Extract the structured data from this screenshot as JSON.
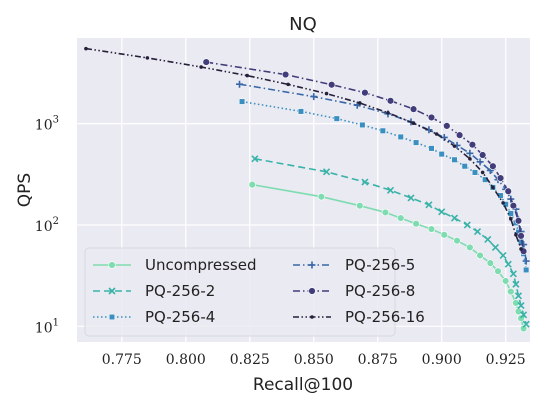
{
  "chart_data": {
    "type": "line",
    "title": "NQ",
    "xlabel": "Recall@100",
    "ylabel": "QPS",
    "xlim": [
      0.7575,
      0.9345
    ],
    "ylim": [
      7,
      7000
    ],
    "yscale": "log",
    "x_ticks": [
      0.775,
      0.8,
      0.825,
      0.85,
      0.875,
      0.9,
      0.925
    ],
    "x_tick_labels": [
      "0.775",
      "0.800",
      "0.825",
      "0.850",
      "0.875",
      "0.900",
      "0.925"
    ],
    "y_ticks": [
      10,
      100,
      1000
    ],
    "y_tick_labels": [
      "10",
      "10",
      "10"
    ],
    "y_tick_exponents": [
      "1",
      "2",
      "3"
    ],
    "grid": true,
    "background": "#eaeaf2",
    "legend": {
      "placement": "lower-left",
      "columns": 2
    },
    "series": [
      {
        "name": "Uncompressed",
        "color": "#7fdcb0",
        "dash": "solid",
        "marker": "circle",
        "x": [
          0.826,
          0.853,
          0.868,
          0.878,
          0.884,
          0.89,
          0.896,
          0.901,
          0.906,
          0.911,
          0.915,
          0.919,
          0.922,
          0.925,
          0.927,
          0.929,
          0.93,
          0.931,
          0.932
        ],
        "y": [
          250,
          190,
          155,
          133,
          117,
          103,
          91,
          80,
          70,
          60,
          50,
          42,
          35,
          28,
          22,
          17,
          14,
          12,
          9.5
        ]
      },
      {
        "name": "PQ-256-2",
        "color": "#39b3a8",
        "dash": "dash",
        "marker": "x",
        "x": [
          0.827,
          0.855,
          0.87,
          0.88,
          0.888,
          0.895,
          0.9,
          0.905,
          0.91,
          0.914,
          0.918,
          0.921,
          0.924,
          0.926,
          0.928,
          0.929,
          0.93,
          0.931,
          0.932,
          0.933
        ],
        "y": [
          450,
          335,
          265,
          220,
          185,
          158,
          135,
          117,
          100,
          86,
          72,
          60,
          50,
          41,
          33,
          26,
          20,
          16,
          13,
          10.5
        ]
      },
      {
        "name": "PQ-256-4",
        "color": "#3b8fc0",
        "dash": "dot",
        "marker": "square",
        "x": [
          0.822,
          0.845,
          0.859,
          0.869,
          0.877,
          0.884,
          0.89,
          0.896,
          0.9,
          0.905,
          0.909,
          0.913,
          0.917,
          0.92,
          0.923,
          0.925,
          0.927,
          0.929,
          0.93,
          0.931,
          0.932,
          0.933
        ],
        "y": [
          1650,
          1320,
          1120,
          970,
          850,
          740,
          650,
          570,
          500,
          440,
          380,
          330,
          280,
          235,
          195,
          160,
          130,
          105,
          85,
          68,
          52,
          36
        ]
      },
      {
        "name": "PQ-256-5",
        "color": "#3867a8",
        "dash": "dashdot",
        "marker": "plus",
        "x": [
          0.821,
          0.85,
          0.867,
          0.879,
          0.888,
          0.895,
          0.901,
          0.906,
          0.911,
          0.915,
          0.919,
          0.922,
          0.925,
          0.927,
          0.929,
          0.93,
          0.931,
          0.932,
          0.933
        ],
        "y": [
          2450,
          1850,
          1520,
          1250,
          1040,
          870,
          730,
          610,
          510,
          420,
          345,
          280,
          225,
          180,
          143,
          112,
          86,
          64,
          44
        ]
      },
      {
        "name": "PQ-256-8",
        "color": "#413d7b",
        "dash": "dashdot",
        "marker": "circle",
        "x": [
          0.808,
          0.839,
          0.857,
          0.87,
          0.88,
          0.889,
          0.896,
          0.902,
          0.907,
          0.912,
          0.916,
          0.92,
          0.923,
          0.926,
          0.928,
          0.93,
          0.931,
          0.932
        ],
        "y": [
          4050,
          3050,
          2420,
          2020,
          1680,
          1390,
          1150,
          950,
          770,
          620,
          490,
          380,
          290,
          215,
          155,
          110,
          78,
          55
        ]
      },
      {
        "name": "PQ-256-16",
        "color": "#26203a",
        "dash": "dashdotdot",
        "marker": "point",
        "x": [
          0.761,
          0.785,
          0.806,
          0.824,
          0.84,
          0.855,
          0.868,
          0.879,
          0.889,
          0.898,
          0.905,
          0.911,
          0.916,
          0.92,
          0.924,
          0.927,
          0.929,
          0.931
        ],
        "y": [
          5500,
          4450,
          3620,
          2980,
          2440,
          1980,
          1600,
          1280,
          1010,
          790,
          600,
          450,
          330,
          235,
          165,
          115,
          80,
          58
        ]
      }
    ]
  }
}
